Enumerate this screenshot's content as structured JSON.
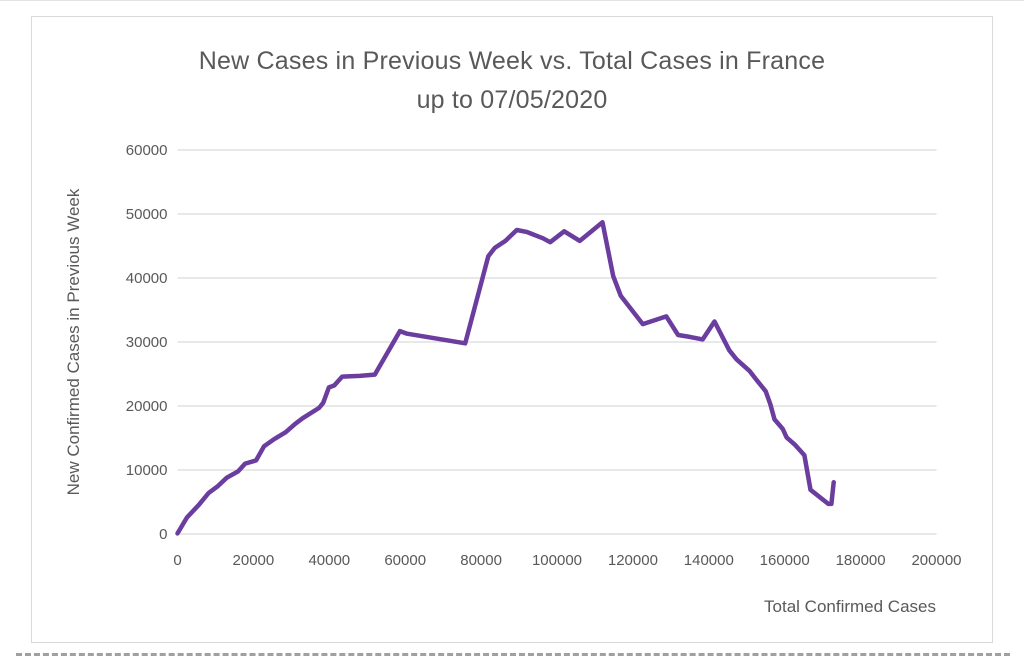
{
  "chart_data": {
    "type": "line",
    "title": "New Cases in Previous Week vs. Total Cases in France up to 07/05/2020",
    "title_lines": [
      "New Cases in Previous Week vs. Total Cases in France",
      "up to 07/05/2020"
    ],
    "xlabel": "Total Confirmed Cases",
    "ylabel": "New Confirmed Cases in Previous Week",
    "xlim": [
      0,
      200000
    ],
    "ylim": [
      0,
      60000
    ],
    "x_tick_step": 20000,
    "y_tick_step": 10000,
    "grid": "horizontal-only",
    "legend": "none",
    "colors": {
      "line": "#6a3d9e",
      "grid": "#d9d9d9",
      "text": "#595959",
      "frame": "#d9d9d9"
    },
    "series": [
      {
        "name": "France",
        "color": "#6a3d9e",
        "points": [
          [
            0,
            100
          ],
          [
            2500,
            2600
          ],
          [
            5700,
            4600
          ],
          [
            8200,
            6400
          ],
          [
            10500,
            7400
          ],
          [
            13000,
            8800
          ],
          [
            14500,
            9300
          ],
          [
            16000,
            9800
          ],
          [
            17800,
            11000
          ],
          [
            20700,
            11500
          ],
          [
            22800,
            13700
          ],
          [
            25400,
            14800
          ],
          [
            28500,
            15900
          ],
          [
            31000,
            17200
          ],
          [
            33000,
            18100
          ],
          [
            37300,
            19700
          ],
          [
            38400,
            20500
          ],
          [
            39900,
            22900
          ],
          [
            41300,
            23200
          ],
          [
            43400,
            24600
          ],
          [
            48000,
            24700
          ],
          [
            52000,
            24900
          ],
          [
            58600,
            31700
          ],
          [
            60500,
            31300
          ],
          [
            75800,
            29800
          ],
          [
            81900,
            43400
          ],
          [
            83600,
            44700
          ],
          [
            86400,
            45800
          ],
          [
            89400,
            47500
          ],
          [
            92000,
            47200
          ],
          [
            96300,
            46200
          ],
          [
            98200,
            45600
          ],
          [
            101900,
            47300
          ],
          [
            106000,
            45800
          ],
          [
            112000,
            48700
          ],
          [
            114800,
            40300
          ],
          [
            116800,
            37200
          ],
          [
            122600,
            32800
          ],
          [
            128800,
            34000
          ],
          [
            131900,
            31100
          ],
          [
            135000,
            30800
          ],
          [
            138400,
            30400
          ],
          [
            141500,
            33200
          ],
          [
            145400,
            28700
          ],
          [
            147300,
            27300
          ],
          [
            150700,
            25500
          ],
          [
            152400,
            24200
          ],
          [
            155000,
            22300
          ],
          [
            156200,
            20300
          ],
          [
            157300,
            17900
          ],
          [
            159500,
            16400
          ],
          [
            160500,
            15100
          ],
          [
            162600,
            14000
          ],
          [
            165200,
            12300
          ],
          [
            166800,
            6900
          ],
          [
            171500,
            4700
          ],
          [
            172300,
            4700
          ],
          [
            172900,
            8100
          ]
        ]
      }
    ]
  }
}
